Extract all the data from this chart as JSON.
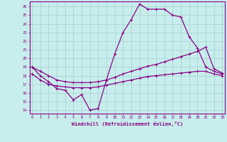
{
  "xlabel": "Windchill (Refroidissement éolien,°C)",
  "bg_color": "#c8eded",
  "grid_color": "#a8d4d4",
  "line_color": "#880088",
  "spine_color": "#880088",
  "x_ticks": [
    0,
    1,
    2,
    3,
    4,
    5,
    6,
    7,
    8,
    9,
    10,
    11,
    12,
    13,
    14,
    15,
    16,
    17,
    18,
    19,
    20,
    21,
    22,
    23
  ],
  "y_ticks": [
    14,
    15,
    16,
    17,
    18,
    19,
    20,
    21,
    22,
    23,
    24,
    25,
    26
  ],
  "xlim": [
    -0.3,
    23.3
  ],
  "ylim": [
    13.6,
    26.6
  ],
  "curve1_x": [
    0,
    1,
    2,
    3,
    4,
    5,
    6,
    7,
    8,
    9,
    10,
    11,
    12,
    13,
    14,
    15,
    16,
    17,
    18,
    19,
    20,
    21,
    22,
    23
  ],
  "curve1_y": [
    19.0,
    18.0,
    17.3,
    16.5,
    16.3,
    15.2,
    15.8,
    14.0,
    14.2,
    17.5,
    20.5,
    23.0,
    24.5,
    26.3,
    25.7,
    25.7,
    25.7,
    25.0,
    24.8,
    22.5,
    21.2,
    19.0,
    18.5,
    18.2
  ],
  "curve2_x": [
    0,
    1,
    2,
    3,
    4,
    5,
    6,
    7,
    8,
    9,
    10,
    11,
    12,
    13,
    14,
    15,
    16,
    17,
    18,
    19,
    20,
    21,
    22,
    23
  ],
  "curve2_y": [
    19.0,
    18.5,
    18.0,
    17.5,
    17.3,
    17.2,
    17.2,
    17.2,
    17.3,
    17.5,
    17.8,
    18.2,
    18.5,
    18.8,
    19.1,
    19.3,
    19.6,
    19.9,
    20.2,
    20.5,
    20.8,
    21.3,
    18.8,
    18.3
  ],
  "curve3_x": [
    0,
    1,
    2,
    3,
    4,
    5,
    6,
    7,
    8,
    9,
    10,
    11,
    12,
    13,
    14,
    15,
    16,
    17,
    18,
    19,
    20,
    21,
    22,
    23
  ],
  "curve3_y": [
    18.2,
    17.5,
    17.0,
    16.8,
    16.7,
    16.6,
    16.6,
    16.6,
    16.7,
    16.9,
    17.1,
    17.3,
    17.5,
    17.7,
    17.9,
    18.0,
    18.1,
    18.2,
    18.3,
    18.4,
    18.5,
    18.5,
    18.2,
    18.0
  ]
}
